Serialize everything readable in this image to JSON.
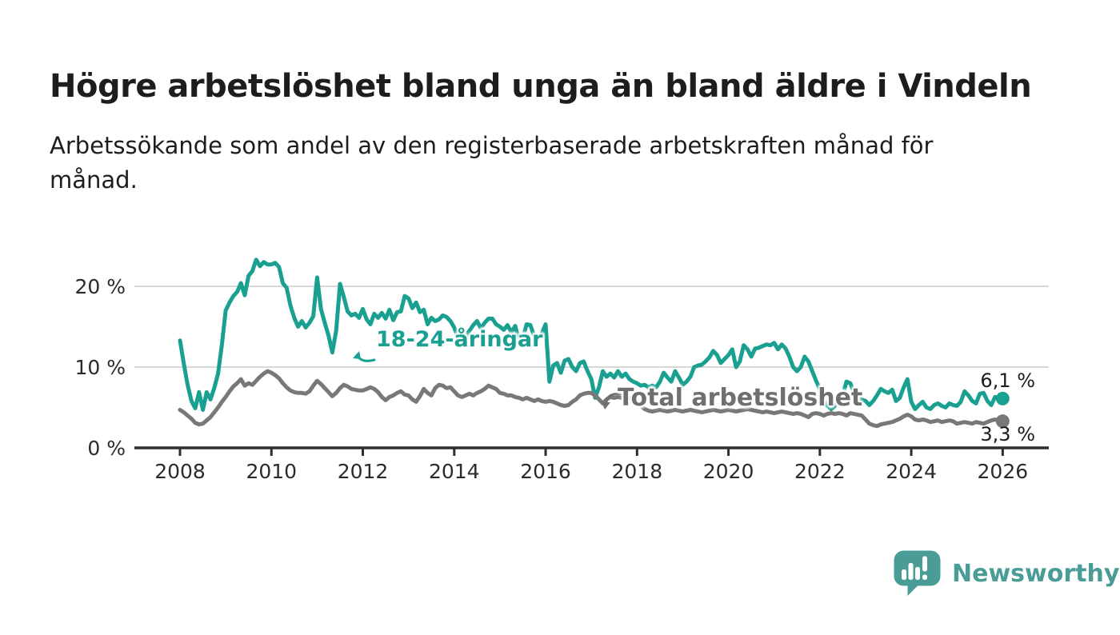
{
  "header": {
    "title": "Högre arbetslöshet bland unga än bland äldre i Vindeln",
    "subtitle": "Arbetssökande som andel av den registerbaserade arbetskraften månad för\nmånad."
  },
  "chart_data": {
    "type": "line",
    "unit": "%",
    "x_start": "2008-01",
    "x_end": "2026-01",
    "x_step_months": 1,
    "ylim": [
      0,
      25
    ],
    "grid": "horizontal only",
    "legend_position": "inline labels on lines",
    "yticks": [
      {
        "value": 0,
        "label": "0 %"
      },
      {
        "value": 10,
        "label": "10 %"
      },
      {
        "value": 20,
        "label": "20 %"
      }
    ],
    "xticks": [
      "2008",
      "2010",
      "2012",
      "2014",
      "2016",
      "2018",
      "2020",
      "2022",
      "2024",
      "2026"
    ],
    "series": [
      {
        "name": "18-24-åringar",
        "color": "#1aa091",
        "end_label": "6,1 %",
        "end_value": 6.1,
        "values": [
          13.3,
          10.4,
          7.8,
          5.8,
          4.9,
          6.9,
          4.7,
          6.9,
          6.0,
          7.4,
          9.2,
          12.8,
          17.0,
          18.0,
          18.8,
          19.3,
          20.4,
          18.9,
          21.3,
          21.9,
          23.3,
          22.5,
          23.0,
          22.7,
          22.7,
          22.9,
          22.4,
          20.4,
          19.8,
          17.6,
          16.1,
          15.0,
          15.7,
          14.9,
          15.5,
          16.3,
          21.1,
          17.2,
          15.5,
          13.9,
          11.8,
          14.5,
          20.3,
          18.7,
          16.9,
          16.4,
          16.6,
          16.1,
          17.2,
          15.9,
          15.3,
          16.6,
          16.1,
          16.7,
          16.0,
          17.1,
          15.8,
          16.8,
          16.9,
          18.8,
          18.5,
          17.3,
          18.0,
          16.8,
          17.1,
          15.3,
          16.1,
          15.7,
          15.9,
          16.4,
          16.2,
          15.7,
          14.9,
          13.7,
          13.2,
          13.8,
          14.5,
          15.2,
          15.7,
          14.8,
          15.5,
          16.0,
          16.0,
          15.3,
          15.0,
          14.6,
          15.2,
          14.3,
          15.1,
          13.2,
          13.5,
          15.3,
          15.2,
          13.8,
          13.4,
          14.2,
          15.3,
          8.2,
          10.2,
          10.5,
          9.3,
          10.8,
          11.0,
          10.0,
          9.5,
          10.5,
          10.7,
          9.5,
          8.5,
          6.2,
          7.5,
          9.5,
          8.8,
          9.2,
          8.7,
          9.5,
          8.8,
          9.2,
          8.5,
          8.2,
          8.0,
          7.7,
          7.8,
          7.5,
          7.7,
          7.5,
          8.2,
          9.3,
          8.7,
          8.2,
          9.5,
          8.7,
          7.8,
          8.2,
          8.8,
          10.0,
          10.2,
          10.3,
          10.7,
          11.2,
          12.0,
          11.5,
          10.5,
          11.0,
          11.5,
          12.2,
          10.0,
          10.7,
          12.7,
          12.2,
          11.3,
          12.3,
          12.4,
          12.6,
          12.8,
          12.7,
          13.0,
          12.2,
          12.8,
          12.3,
          11.3,
          10.0,
          9.5,
          10.0,
          11.3,
          10.7,
          9.5,
          8.3,
          7.3,
          6.0,
          5.2,
          4.8,
          5.2,
          6.0,
          6.5,
          8.2,
          8.0,
          6.8,
          6.2,
          6.0,
          5.8,
          5.3,
          5.8,
          6.5,
          7.3,
          7.0,
          6.8,
          7.2,
          5.8,
          6.2,
          7.5,
          8.5,
          5.7,
          4.8,
          5.3,
          5.7,
          5.0,
          4.8,
          5.3,
          5.5,
          5.2,
          5.0,
          5.5,
          5.3,
          5.2,
          5.7,
          7.0,
          6.5,
          5.8,
          5.5,
          6.7,
          6.8,
          5.8,
          5.3,
          6.3,
          6.2,
          6.1
        ]
      },
      {
        "name": "Total arbetslöshet",
        "color": "#787878",
        "end_label": "3,3 %",
        "end_value": 3.3,
        "values": [
          4.7,
          4.4,
          4.0,
          3.6,
          3.1,
          2.9,
          3.0,
          3.4,
          3.8,
          4.4,
          5.0,
          5.7,
          6.3,
          7.0,
          7.6,
          8.0,
          8.5,
          7.7,
          8.0,
          7.8,
          8.3,
          8.8,
          9.2,
          9.5,
          9.3,
          9.0,
          8.6,
          8.0,
          7.5,
          7.1,
          6.9,
          6.8,
          6.8,
          6.7,
          7.0,
          7.7,
          8.3,
          7.9,
          7.4,
          6.9,
          6.4,
          6.8,
          7.4,
          7.8,
          7.6,
          7.3,
          7.2,
          7.1,
          7.1,
          7.3,
          7.5,
          7.3,
          6.9,
          6.3,
          5.9,
          6.3,
          6.5,
          6.8,
          7.0,
          6.6,
          6.5,
          6.0,
          5.7,
          6.4,
          7.3,
          6.8,
          6.5,
          7.4,
          7.8,
          7.7,
          7.4,
          7.5,
          7.0,
          6.5,
          6.3,
          6.5,
          6.7,
          6.5,
          6.8,
          7.0,
          7.3,
          7.7,
          7.5,
          7.3,
          6.8,
          6.7,
          6.5,
          6.5,
          6.3,
          6.2,
          6.0,
          6.2,
          6.0,
          5.8,
          6.0,
          5.8,
          5.7,
          5.8,
          5.7,
          5.5,
          5.3,
          5.2,
          5.3,
          5.7,
          6.0,
          6.5,
          6.7,
          6.8,
          6.8,
          6.5,
          6.0,
          5.5,
          6.0,
          6.3,
          6.2,
          6.3,
          6.2,
          6.1,
          6.2,
          6.0,
          5.6,
          5.2,
          4.8,
          4.6,
          4.5,
          4.6,
          4.7,
          4.6,
          4.5,
          4.6,
          4.7,
          4.6,
          4.5,
          4.6,
          4.7,
          4.6,
          4.5,
          4.4,
          4.5,
          4.6,
          4.7,
          4.6,
          4.5,
          4.6,
          4.7,
          4.6,
          4.5,
          4.6,
          4.7,
          4.8,
          4.7,
          4.6,
          4.5,
          4.4,
          4.5,
          4.4,
          4.3,
          4.4,
          4.5,
          4.4,
          4.3,
          4.2,
          4.3,
          4.2,
          4.0,
          3.8,
          4.2,
          4.3,
          4.2,
          4.0,
          4.2,
          4.3,
          4.2,
          4.3,
          4.2,
          4.0,
          4.3,
          4.2,
          4.1,
          4.0,
          3.5,
          3.0,
          2.8,
          2.7,
          2.9,
          3.0,
          3.1,
          3.2,
          3.4,
          3.6,
          3.9,
          4.1,
          3.9,
          3.5,
          3.4,
          3.5,
          3.4,
          3.2,
          3.3,
          3.4,
          3.2,
          3.3,
          3.4,
          3.3,
          3.0,
          3.1,
          3.2,
          3.1,
          3.0,
          3.2,
          3.1,
          3.0,
          3.2,
          3.4,
          3.5,
          3.4,
          3.3
        ]
      }
    ]
  },
  "branding": {
    "name": "Newsworthy"
  }
}
